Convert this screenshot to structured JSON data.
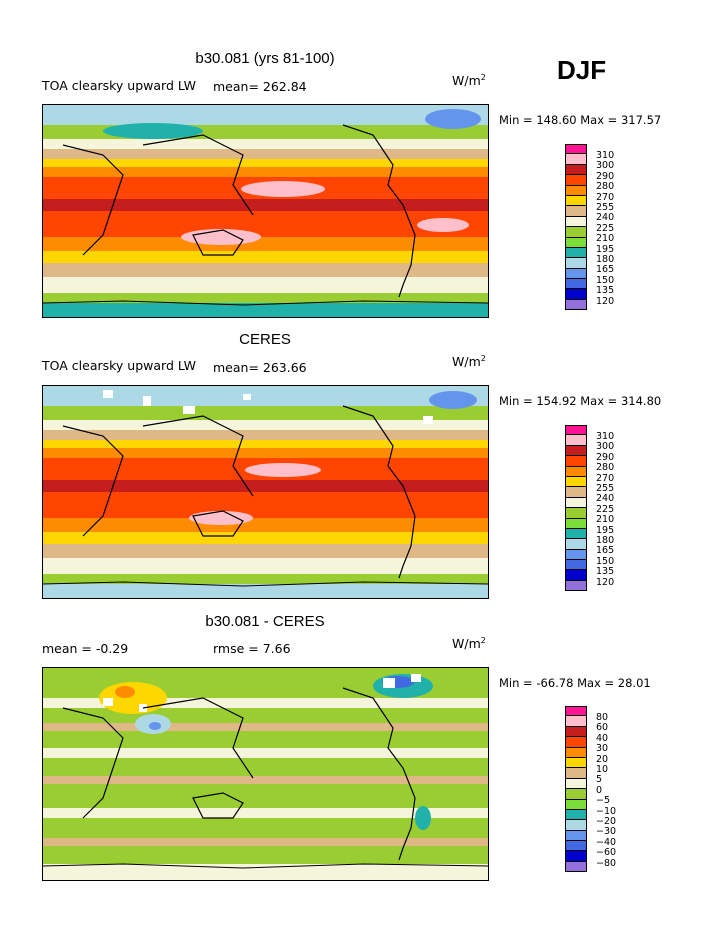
{
  "season": "DJF",
  "unit_label": "W/m",
  "unit_sup": "2",
  "panels": [
    {
      "title": "b30.081 (yrs 81-100)",
      "left_label": "TOA clearsky upward LW",
      "stat1": "mean= 262.84",
      "stat2": "",
      "minmax": "Min = 148.60 Max = 317.57",
      "field": "model"
    },
    {
      "title": "CERES",
      "left_label": "TOA clearsky upward LW",
      "stat1": "mean= 263.66",
      "stat2": "",
      "minmax": "Min = 154.92 Max = 314.80",
      "field": "obs"
    },
    {
      "title": "b30.081 - CERES",
      "left_label": "mean =   -0.29",
      "stat1": "rmse =    7.66",
      "stat2": "",
      "minmax": "Min = -66.78 Max =  28.01",
      "field": "diff"
    }
  ],
  "colorbar_abs": {
    "levels": [
      "310",
      "300",
      "290",
      "280",
      "270",
      "255",
      "240",
      "225",
      "210",
      "195",
      "180",
      "165",
      "150",
      "135",
      "120"
    ],
    "colors": [
      "#ff1493",
      "#ffc0cb",
      "#c41e1e",
      "#ff4500",
      "#ff8c00",
      "#ffd700",
      "#deb887",
      "#f5f5dc",
      "#9acd32",
      "#7cdc3a",
      "#20b2aa",
      "#add8e6",
      "#6495ed",
      "#4169e1",
      "#0000cd",
      "#9370db"
    ]
  },
  "colorbar_diff": {
    "levels": [
      "80",
      "60",
      "40",
      "30",
      "20",
      "10",
      "5",
      "0",
      "−5",
      "−10",
      "−20",
      "−30",
      "−40",
      "−60",
      "−80"
    ],
    "colors": [
      "#ff1493",
      "#ffc0cb",
      "#c41e1e",
      "#ff4500",
      "#ff8c00",
      "#ffd700",
      "#deb887",
      "#f5f5dc",
      "#9acd32",
      "#7cdc3a",
      "#20b2aa",
      "#add8e6",
      "#6495ed",
      "#4169e1",
      "#0000cd",
      "#9370db"
    ]
  }
}
